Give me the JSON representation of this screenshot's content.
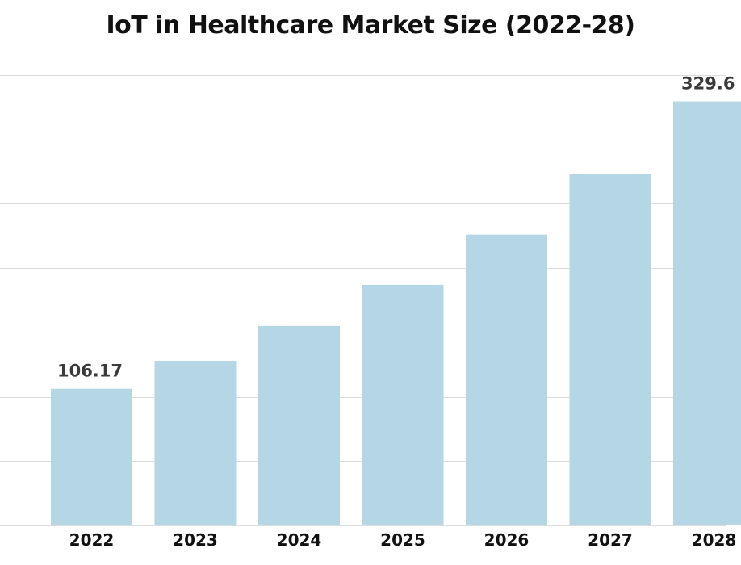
{
  "chart_data": {
    "type": "bar",
    "title": "IoT in Healthcare Market Size (2022-28)",
    "xlabel": "",
    "ylabel": "",
    "categories": [
      "2022",
      "2023",
      "2024",
      "2025",
      "2026",
      "2027",
      "2028"
    ],
    "values": [
      106.17,
      128,
      155,
      187,
      226,
      273,
      329.6
    ],
    "data_labels": [
      {
        "index": 0,
        "text": "106.17"
      },
      {
        "index": 6,
        "text": "329.6"
      }
    ],
    "ylim": [
      0,
      350
    ],
    "ygrid_step": 50,
    "grid": true,
    "y_tick_labels_visible": false,
    "legend": "none",
    "bar_color": "#b5d6e4"
  }
}
